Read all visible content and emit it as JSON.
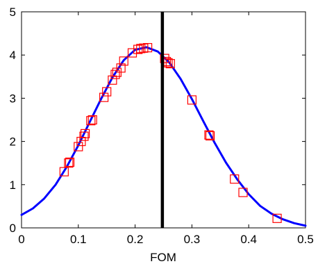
{
  "chart_data": {
    "type": "line",
    "title": "",
    "xlabel": "FOM",
    "ylabel": "",
    "xlim": [
      0,
      0.5
    ],
    "ylim": [
      0,
      5
    ],
    "xticks": [
      0,
      0.1,
      0.2,
      0.3,
      0.4,
      0.5
    ],
    "xtick_labels": [
      "0",
      "0.1",
      "0.2",
      "0.3",
      "0.4",
      "0.5"
    ],
    "yticks": [
      0,
      1,
      2,
      3,
      4,
      5
    ],
    "ytick_labels": [
      "0",
      "1",
      "2",
      "3",
      "4",
      "5"
    ],
    "grid": false,
    "legend": null,
    "series": [
      {
        "kind": "curve",
        "color": "#0000ff",
        "x": [
          0,
          0.02,
          0.04,
          0.06,
          0.08,
          0.1,
          0.12,
          0.14,
          0.16,
          0.18,
          0.2,
          0.22,
          0.24,
          0.26,
          0.28,
          0.3,
          0.32,
          0.34,
          0.36,
          0.38,
          0.4,
          0.42,
          0.44,
          0.46,
          0.48,
          0.5
        ],
        "y": [
          0.3,
          0.45,
          0.68,
          1.0,
          1.42,
          1.91,
          2.45,
          2.98,
          3.48,
          3.88,
          4.12,
          4.18,
          4.08,
          3.83,
          3.45,
          2.98,
          2.47,
          1.97,
          1.51,
          1.12,
          0.78,
          0.51,
          0.33,
          0.2,
          0.11,
          0.05
        ]
      },
      {
        "kind": "markers",
        "marker": "square",
        "color": "#ff0000",
        "x": [
          0.075,
          0.083,
          0.085,
          0.1,
          0.105,
          0.11,
          0.112,
          0.122,
          0.125,
          0.145,
          0.15,
          0.16,
          0.165,
          0.168,
          0.175,
          0.18,
          0.195,
          0.205,
          0.21,
          0.215,
          0.222,
          0.252,
          0.255,
          0.258,
          0.262,
          0.3,
          0.33,
          0.332,
          0.375,
          0.39,
          0.45
        ],
        "y": [
          1.3,
          1.5,
          1.52,
          1.88,
          2.0,
          2.12,
          2.18,
          2.48,
          2.5,
          3.02,
          3.15,
          3.42,
          3.55,
          3.6,
          3.7,
          3.86,
          4.05,
          4.13,
          4.15,
          4.16,
          4.17,
          3.92,
          3.85,
          3.82,
          3.8,
          2.96,
          2.15,
          2.13,
          1.13,
          0.82,
          0.22
        ]
      }
    ],
    "vertical_line": {
      "x": 0.248,
      "color": "#000000"
    }
  }
}
